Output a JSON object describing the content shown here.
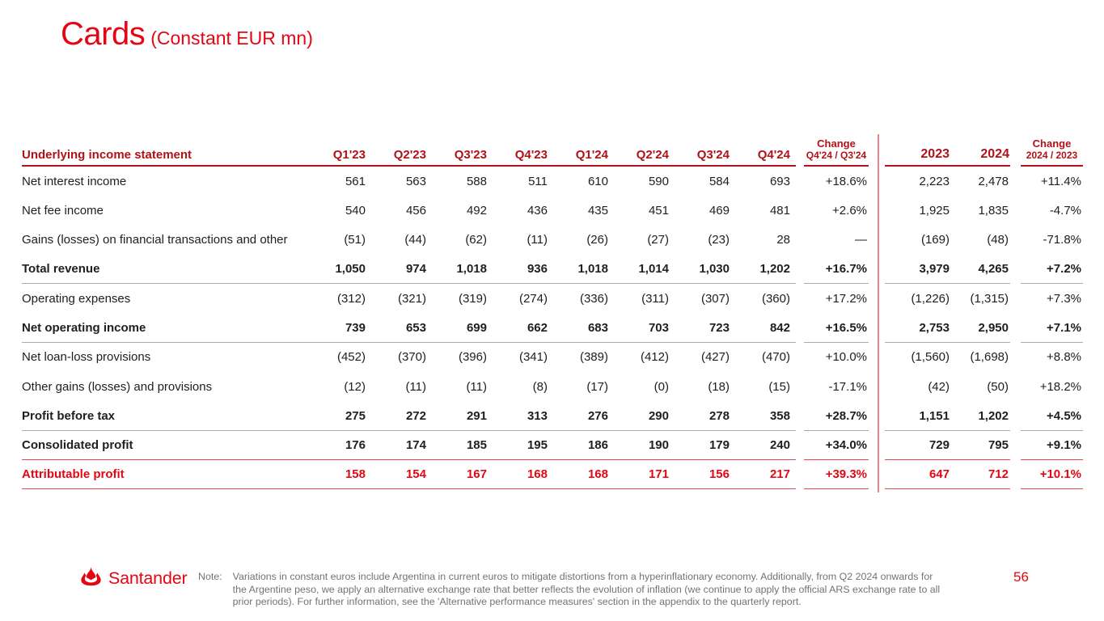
{
  "title": {
    "main": "Cards",
    "subtitle": "(Constant EUR mn)"
  },
  "colors": {
    "brand_red": "#E40613",
    "header_red": "#B01217",
    "text": "#20201E",
    "note_gray": "#737373",
    "line_gray": "#ABABAB"
  },
  "table": {
    "header": {
      "label": "Underlying income statement",
      "quarters": [
        "Q1'23",
        "Q2'23",
        "Q3'23",
        "Q4'23",
        "Q1'24",
        "Q2'24",
        "Q3'24",
        "Q4'24"
      ],
      "change_q_title": "Change",
      "change_q_sub": "Q4'24 / Q3'24",
      "years": [
        "2023",
        "2024"
      ],
      "change_y_title": "Change",
      "change_y_sub": "2024 / 2023"
    },
    "rows": [
      {
        "label": "Net interest income",
        "values": [
          "561",
          "563",
          "588",
          "511",
          "610",
          "590",
          "584",
          "693"
        ],
        "change_q": "+18.6%",
        "y2023": "2,223",
        "y2024": "2,478",
        "change_y": "+11.4%",
        "bold": false,
        "red": false,
        "border": "none"
      },
      {
        "label": "Net fee income",
        "values": [
          "540",
          "456",
          "492",
          "436",
          "435",
          "451",
          "469",
          "481"
        ],
        "change_q": "+2.6%",
        "y2023": "1,925",
        "y2024": "1,835",
        "change_y": "-4.7%",
        "bold": false,
        "red": false,
        "border": "none"
      },
      {
        "label": "Gains (losses) on financial transactions and other",
        "values": [
          "(51)",
          "(44)",
          "(62)",
          "(11)",
          "(26)",
          "(27)",
          "(23)",
          "28"
        ],
        "change_q": "—",
        "y2023": "(169)",
        "y2024": "(48)",
        "change_y": "-71.8%",
        "bold": false,
        "red": false,
        "border": "none"
      },
      {
        "label": "Total revenue",
        "values": [
          "1,050",
          "974",
          "1,018",
          "936",
          "1,018",
          "1,014",
          "1,030",
          "1,202"
        ],
        "change_q": "+16.7%",
        "y2023": "3,979",
        "y2024": "4,265",
        "change_y": "+7.2%",
        "bold": true,
        "red": false,
        "border": "gray"
      },
      {
        "label": "Operating expenses",
        "values": [
          "(312)",
          "(321)",
          "(319)",
          "(274)",
          "(336)",
          "(311)",
          "(307)",
          "(360)"
        ],
        "change_q": "+17.2%",
        "y2023": "(1,226)",
        "y2024": "(1,315)",
        "change_y": "+7.3%",
        "bold": false,
        "red": false,
        "border": "none"
      },
      {
        "label": "Net operating income",
        "values": [
          "739",
          "653",
          "699",
          "662",
          "683",
          "703",
          "723",
          "842"
        ],
        "change_q": "+16.5%",
        "y2023": "2,753",
        "y2024": "2,950",
        "change_y": "+7.1%",
        "bold": true,
        "red": false,
        "border": "gray"
      },
      {
        "label": "Net loan-loss provisions",
        "values": [
          "(452)",
          "(370)",
          "(396)",
          "(341)",
          "(389)",
          "(412)",
          "(427)",
          "(470)"
        ],
        "change_q": "+10.0%",
        "y2023": "(1,560)",
        "y2024": "(1,698)",
        "change_y": "+8.8%",
        "bold": false,
        "red": false,
        "border": "none"
      },
      {
        "label": "Other gains (losses) and provisions",
        "values": [
          "(12)",
          "(11)",
          "(11)",
          "(8)",
          "(17)",
          "(0)",
          "(18)",
          "(15)"
        ],
        "change_q": "-17.1%",
        "y2023": "(42)",
        "y2024": "(50)",
        "change_y": "+18.2%",
        "bold": false,
        "red": false,
        "border": "none"
      },
      {
        "label": "Profit before tax",
        "values": [
          "275",
          "272",
          "291",
          "313",
          "276",
          "290",
          "278",
          "358"
        ],
        "change_q": "+28.7%",
        "y2023": "1,151",
        "y2024": "1,202",
        "change_y": "+4.5%",
        "bold": true,
        "red": false,
        "border": "gray"
      },
      {
        "label": "Consolidated profit",
        "values": [
          "176",
          "174",
          "185",
          "195",
          "186",
          "190",
          "179",
          "240"
        ],
        "change_q": "+34.0%",
        "y2023": "729",
        "y2024": "795",
        "change_y": "+9.1%",
        "bold": true,
        "red": false,
        "border": "red"
      },
      {
        "label": "Attributable profit",
        "values": [
          "158",
          "154",
          "167",
          "168",
          "168",
          "171",
          "156",
          "217"
        ],
        "change_q": "+39.3%",
        "y2023": "647",
        "y2024": "712",
        "change_y": "+10.1%",
        "bold": true,
        "red": true,
        "border": "red"
      }
    ]
  },
  "footer": {
    "logo_text": "Santander",
    "note_label": "Note:",
    "note_lines": [
      "Variations in constant euros include Argentina in current euros to mitigate distortions from a hyperinflationary economy. Additionally, from Q2 2024 onwards for",
      "the Argentine peso, we apply an alternative exchange rate that better reflects the evolution of inflation (we continue to apply the official ARS exchange rate to all",
      "prior periods). For further information, see the 'Alternative performance measures' section in the appendix to the quarterly report."
    ],
    "page_number": "56"
  }
}
